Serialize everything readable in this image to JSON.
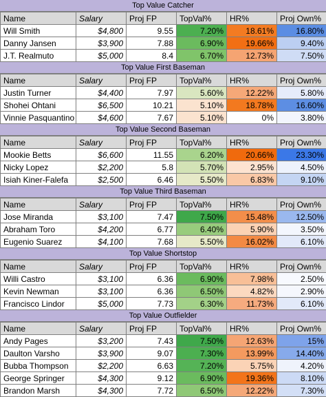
{
  "columns": [
    "Name",
    "Salary",
    "Proj FP",
    "TopVal%",
    "HR%",
    "Proj Own%"
  ],
  "sections": [
    {
      "title": "Top Value Catcher",
      "rows": [
        {
          "name": "Will Smith",
          "salary": "$4,800",
          "fp": "9.55",
          "topval": "7.20%",
          "hr": "18.61%",
          "own": "16.80%",
          "c_topval": "#4caf50",
          "c_hr": "#f37b22",
          "c_own": "#5b8de3"
        },
        {
          "name": "Danny Jansen",
          "salary": "$3,900",
          "fp": "7.88",
          "topval": "6.90%",
          "hr": "19.66%",
          "own": "9.40%",
          "c_topval": "#6bbb5e",
          "c_hr": "#f26f14",
          "c_own": "#bccff2"
        },
        {
          "name": "J.T. Realmuto",
          "salary": "$5,000",
          "fp": "8.4",
          "topval": "6.70%",
          "hr": "12.73%",
          "own": "7.50%",
          "c_topval": "#80c46a",
          "c_hr": "#f5a472",
          "c_own": "#cfdcf5"
        }
      ]
    },
    {
      "title": "Top Value First Baseman",
      "rows": [
        {
          "name": "Justin Turner",
          "salary": "$4,400",
          "fp": "7.97",
          "topval": "5.60%",
          "hr": "12.22%",
          "own": "5.80%",
          "c_topval": "#d9e6c0",
          "c_hr": "#f5a878",
          "c_own": "#e6ecfb"
        },
        {
          "name": "Shohei Ohtani",
          "salary": "$6,500",
          "fp": "10.21",
          "topval": "5.10%",
          "hr": "18.78%",
          "own": "16.60%",
          "c_topval": "#fbe3cf",
          "c_hr": "#f3791f",
          "c_own": "#5d8ee3"
        },
        {
          "name": "Vinnie Pasquantino",
          "salary": "$4,600",
          "fp": "7.67",
          "topval": "5.10%",
          "hr": "0%",
          "own": "3.80%",
          "c_topval": "#fbe3cf",
          "c_hr": "#ffffff",
          "c_own": "#f2f5fd"
        }
      ]
    },
    {
      "title": "Top Value Second Baseman",
      "rows": [
        {
          "name": "Mookie Betts",
          "salary": "$6,600",
          "fp": "11.55",
          "topval": "6.20%",
          "hr": "20.66%",
          "own": "23.30%",
          "c_topval": "#a9d48d",
          "c_hr": "#f06a0d",
          "c_own": "#3b78e7"
        },
        {
          "name": "Nicky Lopez",
          "salary": "$2,200",
          "fp": "5.8",
          "topval": "5.70%",
          "hr": "2.95%",
          "own": "4.50%",
          "c_topval": "#d3e3b6",
          "c_hr": "#fde3d0",
          "c_own": "#edf2fc"
        },
        {
          "name": "Isiah Kiner-Falefa",
          "salary": "$2,500",
          "fp": "6.46",
          "topval": "5.50%",
          "hr": "6.83%",
          "own": "9.10%",
          "c_topval": "#e6e9c8",
          "c_hr": "#f9c8a6",
          "c_own": "#c4d5f3"
        }
      ]
    },
    {
      "title": "Top Value Third Baseman",
      "rows": [
        {
          "name": "Jose Miranda",
          "salary": "$3,100",
          "fp": "7.47",
          "topval": "7.50%",
          "hr": "15.48%",
          "own": "12.50%",
          "c_topval": "#3fa84a",
          "c_hr": "#f38e4a",
          "c_own": "#9ab8ee"
        },
        {
          "name": "Abraham Toro",
          "salary": "$4,200",
          "fp": "6.77",
          "topval": "6.40%",
          "hr": "5.90%",
          "own": "3.50%",
          "c_topval": "#98cc7d",
          "c_hr": "#fbd2b4",
          "c_own": "#f3f6fd"
        },
        {
          "name": "Eugenio Suarez",
          "salary": "$4,100",
          "fp": "7.68",
          "topval": "5.50%",
          "hr": "16.02%",
          "own": "6.10%",
          "c_topval": "#e6e9c8",
          "c_hr": "#f38a44",
          "c_own": "#e2e9f9"
        }
      ]
    },
    {
      "title": "Top Value Shortstop",
      "rows": [
        {
          "name": "Willi Castro",
          "salary": "$3,100",
          "fp": "6.36",
          "topval": "6.90%",
          "hr": "7.98%",
          "own": "2.50%",
          "c_topval": "#6bbb5e",
          "c_hr": "#f8bf97",
          "c_own": "#f7f9fe"
        },
        {
          "name": "Kevin Newman",
          "salary": "$3,100",
          "fp": "6.36",
          "topval": "6.50%",
          "hr": "4.82%",
          "own": "2.90%",
          "c_topval": "#8fc876",
          "c_hr": "#fcd9c0",
          "c_own": "#f5f7fd"
        },
        {
          "name": "Francisco Lindor",
          "salary": "$5,000",
          "fp": "7.73",
          "topval": "6.30%",
          "hr": "11.73%",
          "own": "6.10%",
          "c_topval": "#a3d188",
          "c_hr": "#f6ab7f",
          "c_own": "#e2e9f9"
        }
      ]
    },
    {
      "title": "Top Value Outfielder",
      "rows": [
        {
          "name": "Andy Pages",
          "salary": "$3,200",
          "fp": "7.43",
          "topval": "7.50%",
          "hr": "12.63%",
          "own": "15%",
          "c_topval": "#3fa84a",
          "c_hr": "#f5a574",
          "c_own": "#7ea3ea"
        },
        {
          "name": "Daulton Varsho",
          "salary": "$3,900",
          "fp": "9.07",
          "topval": "7.30%",
          "hr": "13.99%",
          "own": "14.40%",
          "c_topval": "#4caf50",
          "c_hr": "#f49a5f",
          "c_own": "#87aaeb"
        },
        {
          "name": "Bubba Thompson",
          "salary": "$2,200",
          "fp": "6.63",
          "topval": "7.20%",
          "hr": "5.75%",
          "own": "4.20%",
          "c_topval": "#55b356",
          "c_hr": "#fbd3b6",
          "c_own": "#eff3fc"
        },
        {
          "name": "George Springer",
          "salary": "$4,300",
          "fp": "9.12",
          "topval": "6.90%",
          "hr": "19.36%",
          "own": "8.10%",
          "c_topval": "#6bbb5e",
          "c_hr": "#f3741a",
          "c_own": "#ccdaf5"
        },
        {
          "name": "Brandon Marsh",
          "salary": "$4,300",
          "fp": "7.72",
          "topval": "6.50%",
          "hr": "12.22%",
          "own": "7.30%",
          "c_topval": "#8fc876",
          "c_hr": "#f5a878",
          "c_own": "#d3dff6"
        }
      ]
    }
  ]
}
